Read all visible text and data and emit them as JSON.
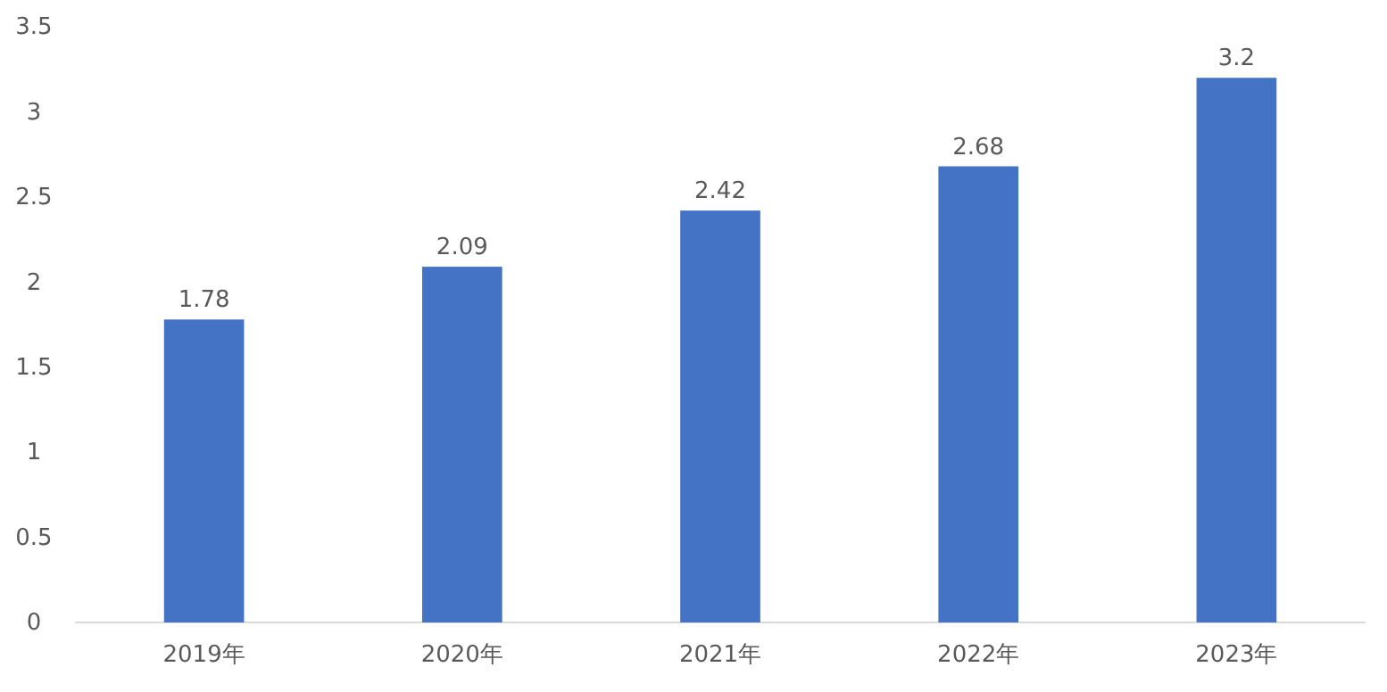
{
  "chart_data": {
    "type": "bar",
    "categories": [
      "2019年",
      "2020年",
      "2021年",
      "2022年",
      "2023年"
    ],
    "values": [
      1.78,
      2.09,
      2.42,
      2.68,
      3.2
    ],
    "color": "#4472c4",
    "data_labels": true,
    "ylim": [
      0,
      3.5
    ],
    "yticks": [
      0,
      0.5,
      1,
      1.5,
      2,
      2.5,
      3,
      3.5
    ],
    "grid": false
  }
}
